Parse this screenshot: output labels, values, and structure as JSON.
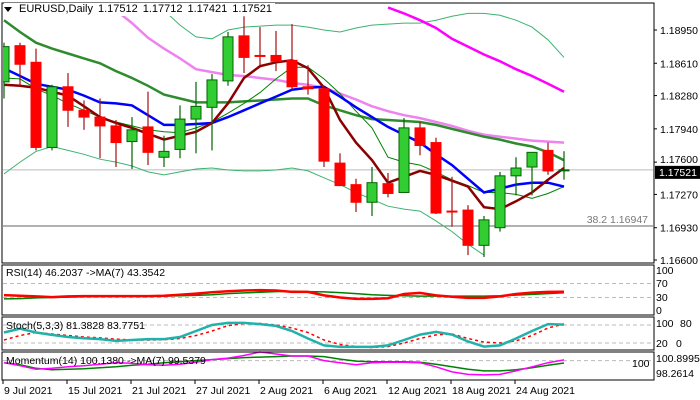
{
  "header": {
    "symbol_label": "EURUSD,Daily",
    "open": "1.17512",
    "high": "1.17712",
    "low": "1.17421",
    "close": "1.17521"
  },
  "price_axis": {
    "ticks": [
      "1.18950",
      "1.18610",
      "1.18280",
      "1.17940",
      "1.17600",
      "1.17270",
      "1.16930",
      "1.16600"
    ],
    "current_price_label": "1.17521"
  },
  "fib_label": "38.2 1.16947",
  "date_axis": {
    "labels": [
      "9 Jul 2021",
      "15 Jul 2021",
      "21 Jul 2021",
      "27 Jul 2021",
      "2 Aug 2021",
      "6 Aug 2021",
      "12 Aug 2021",
      "18 Aug 2021",
      "24 Aug 2021"
    ]
  },
  "rsi": {
    "label": "RSI(14) 46.2037  ->MA(7) 43.3542",
    "levels": [
      "100",
      "70",
      "30",
      "0"
    ]
  },
  "stoch": {
    "label": "Stoch(5,3,3) 81.3828 83.7751",
    "levels": [
      "100",
      "80",
      "20",
      "0"
    ]
  },
  "momentum": {
    "label": "Momentum(14) 100.1380  ->MA(7) 99.5379",
    "levels": [
      "100",
      "100.8995",
      "98.2614"
    ]
  },
  "colors": {
    "bull": "#32CD32",
    "bull_border": "#006400",
    "bear": "#FF0000",
    "bear_wick": "#A01010",
    "ma_blue": "#0000FF",
    "ma_darkred": "#8B0000",
    "ma_green": "#2E8B2E",
    "ma_violet": "#EE82EE",
    "ma_magenta": "#FF00FF",
    "bands": "#3CB371",
    "ma_thin": "#008000",
    "teal": "#20B2AA"
  },
  "chart_data": [
    {
      "type": "candlestick",
      "title": "EURUSD,Daily",
      "ylim": [
        1.166,
        1.1918
      ],
      "fib_level": 1.16947,
      "current_price": 1.17521,
      "candles": [
        [
          1.1842,
          1.1882,
          1.1825,
          1.1878
        ],
        [
          1.1879,
          1.1882,
          1.1837,
          1.186
        ],
        [
          1.1862,
          1.1876,
          1.1772,
          1.1775
        ],
        [
          1.1775,
          1.1839,
          1.1772,
          1.1837
        ],
        [
          1.1837,
          1.1851,
          1.1796,
          1.1813
        ],
        [
          1.1813,
          1.1823,
          1.1793,
          1.1806
        ],
        [
          1.1806,
          1.1825,
          1.1764,
          1.1797
        ],
        [
          1.1797,
          1.1803,
          1.1755,
          1.178
        ],
        [
          1.1781,
          1.1806,
          1.1753,
          1.1793
        ],
        [
          1.1796,
          1.1832,
          1.1757,
          1.177
        ],
        [
          1.1765,
          1.1787,
          1.1755,
          1.1771
        ],
        [
          1.1773,
          1.1818,
          1.1764,
          1.1804
        ],
        [
          1.1804,
          1.1842,
          1.1769,
          1.1817
        ],
        [
          1.1816,
          1.185,
          1.1772,
          1.1844
        ],
        [
          1.1843,
          1.1893,
          1.1838,
          1.1888
        ],
        [
          1.1889,
          1.1909,
          1.1851,
          1.1867
        ],
        [
          1.1869,
          1.1898,
          1.1859,
          1.1868
        ],
        [
          1.1869,
          1.1894,
          1.1853,
          1.1863
        ],
        [
          1.1864,
          1.1901,
          1.1834,
          1.1837
        ],
        [
          1.1837,
          1.1859,
          1.1829,
          1.1835
        ],
        [
          1.1835,
          1.1837,
          1.1755,
          1.1761
        ],
        [
          1.1759,
          1.1769,
          1.1736,
          1.1736
        ],
        [
          1.1737,
          1.1743,
          1.1709,
          1.1719
        ],
        [
          1.1719,
          1.1755,
          1.1705,
          1.1739
        ],
        [
          1.1738,
          1.1749,
          1.1724,
          1.1728
        ],
        [
          1.1729,
          1.1805,
          1.1729,
          1.1795
        ],
        [
          1.1795,
          1.1801,
          1.1767,
          1.1777
        ],
        [
          1.178,
          1.1785,
          1.1707,
          1.1708
        ],
        [
          1.171,
          1.1745,
          1.1694,
          1.1709
        ],
        [
          1.1711,
          1.1716,
          1.1665,
          1.1675
        ],
        [
          1.1675,
          1.1705,
          1.1663,
          1.1701
        ],
        [
          1.1693,
          1.175,
          1.1689,
          1.1746
        ],
        [
          1.1746,
          1.1765,
          1.1726,
          1.1754
        ],
        [
          1.1755,
          1.177,
          1.1726,
          1.177
        ],
        [
          1.1772,
          1.178,
          1.1747,
          1.1751
        ],
        [
          1.17512,
          1.17712,
          1.17421,
          1.17521
        ]
      ],
      "overlays": {
        "ma_blue": [
          1.1856,
          1.1848,
          1.184,
          1.1837,
          1.1834,
          1.1828,
          1.1821,
          1.182,
          1.1818,
          1.1808,
          1.1798,
          1.1798,
          1.1799,
          1.18,
          1.1806,
          1.1813,
          1.182,
          1.1827,
          1.1834,
          1.1836,
          1.1837,
          1.1827,
          1.1816,
          1.1806,
          1.1796,
          1.1788,
          1.178,
          1.1768,
          1.1757,
          1.1743,
          1.1729,
          1.1733,
          1.1737,
          1.1739,
          1.1739,
          1.1735
        ],
        "ma_darkred": [
          1.1839,
          1.1838,
          1.1836,
          1.1832,
          1.1828,
          1.1817,
          1.1806,
          1.18,
          1.1795,
          1.1789,
          1.1783,
          1.1787,
          1.1791,
          1.18,
          1.182,
          1.1846,
          1.1858,
          1.1862,
          1.1864,
          1.1856,
          1.1836,
          1.1803,
          1.178,
          1.1762,
          1.1739,
          1.1745,
          1.1751,
          1.1747,
          1.1741,
          1.1735,
          1.1714,
          1.1712,
          1.172,
          1.1729,
          1.1742,
          1.1754
        ],
        "ma_green": [
          1.1905,
          1.1893,
          1.1882,
          1.1876,
          1.1871,
          1.1866,
          1.1861,
          1.1853,
          1.1846,
          1.1838,
          1.1829,
          1.1825,
          1.1821,
          1.1821,
          1.1821,
          1.1822,
          1.1823,
          1.1824,
          1.1825,
          1.1825,
          1.1818,
          1.1813,
          1.1808,
          1.1804,
          1.1803,
          1.1802,
          1.1801,
          1.1798,
          1.1794,
          1.179,
          1.1786,
          1.1783,
          1.1779,
          1.1776,
          1.177,
          1.1762
        ],
        "ma_thin": [
          1.1846,
          1.1845,
          1.1835,
          1.1828,
          1.182,
          1.1813,
          1.1806,
          1.1801,
          1.1797,
          1.1793,
          1.1791,
          1.179,
          1.1795,
          1.1801,
          1.181,
          1.182,
          1.1831,
          1.1845,
          1.1857,
          1.1857,
          1.1845,
          1.183,
          1.1812,
          1.1795,
          1.1765,
          1.176,
          1.1757,
          1.175,
          1.1742,
          1.1736,
          1.1729,
          1.1729,
          1.1727,
          1.1723,
          1.1728,
          1.1735
        ],
        "ma_violet": [
          null,
          null,
          null,
          null,
          null,
          null,
          null,
          1.1915,
          1.1902,
          1.1887,
          1.1876,
          1.1866,
          1.1855,
          1.1852,
          1.1849,
          1.1848,
          1.1846,
          1.1844,
          1.1841,
          1.1839,
          1.1836,
          1.183,
          1.1824,
          1.1817,
          1.1812,
          1.1808,
          1.1805,
          1.1801,
          1.1797,
          1.1792,
          1.1788,
          1.1786,
          1.1784,
          1.1782,
          1.1781,
          1.178
        ],
        "ma_magenta": [
          null,
          null,
          null,
          null,
          null,
          null,
          null,
          null,
          null,
          null,
          null,
          null,
          null,
          null,
          null,
          null,
          null,
          null,
          null,
          null,
          null,
          null,
          null,
          null,
          1.1918,
          1.1912,
          1.1905,
          1.1897,
          1.1886,
          1.1878,
          1.187,
          1.1863,
          1.1855,
          1.1848,
          1.184,
          1.1832
        ],
        "band_upper": [
          null,
          null,
          null,
          null,
          null,
          null,
          null,
          null,
          null,
          null,
          1.1915,
          1.19,
          1.1888,
          1.1886,
          1.1895,
          1.1898,
          1.1899,
          1.19,
          1.19,
          1.1898,
          1.1895,
          1.1893,
          1.1897,
          1.19,
          1.1901,
          1.1902,
          1.1902,
          1.1905,
          1.1909,
          1.1912,
          1.1912,
          1.191,
          1.1905,
          1.1898,
          1.1885,
          1.1867
        ],
        "band_lower": [
          1.1748,
          1.176,
          1.1771,
          1.1776,
          1.1772,
          1.1768,
          1.1763,
          1.176,
          1.1756,
          1.175,
          1.1747,
          1.175,
          1.1753,
          1.1754,
          1.1752,
          1.1751,
          1.1751,
          1.1752,
          1.1754,
          1.1751,
          1.1744,
          1.1737,
          1.1729,
          1.1722,
          1.1715,
          1.1712,
          1.171,
          1.17,
          1.1689,
          1.1676,
          1.1665,
          null,
          null,
          null,
          null,
          null
        ]
      }
    },
    {
      "type": "line",
      "name": "RSI(14)",
      "ylim": [
        0,
        100
      ],
      "levels": [
        70,
        30
      ],
      "rsi": [
        37,
        35,
        33,
        31,
        33,
        34,
        34,
        34,
        34,
        34,
        35,
        38,
        41,
        45,
        48,
        50,
        51,
        50,
        46,
        46,
        36,
        30,
        26,
        26,
        28,
        40,
        43,
        36,
        32,
        29,
        29,
        33,
        40,
        44,
        46,
        46.2
      ],
      "ma": [
        26,
        27,
        29,
        30,
        31,
        32,
        33,
        33,
        34,
        34,
        34,
        35,
        36,
        38,
        41,
        43,
        45,
        47,
        48,
        47,
        46,
        44,
        41,
        38,
        36,
        35,
        34,
        34,
        34,
        34,
        34,
        35,
        37,
        39,
        41,
        43.35
      ]
    },
    {
      "type": "line",
      "name": "Stoch(5,3,3)",
      "ylim": [
        0,
        100
      ],
      "levels": [
        80,
        20
      ],
      "main": [
        55,
        68,
        55,
        47,
        40,
        36,
        33,
        27,
        30,
        33,
        33,
        40,
        60,
        80,
        87,
        87,
        83,
        77,
        60,
        35,
        12,
        7,
        7,
        7,
        12,
        30,
        48,
        57,
        48,
        25,
        8,
        12,
        35,
        60,
        83,
        81.38
      ],
      "signal": [
        30,
        45,
        55,
        50,
        45,
        40,
        37,
        33,
        30,
        30,
        31,
        35,
        45,
        60,
        78,
        85,
        85,
        80,
        70,
        55,
        30,
        15,
        8,
        5,
        8,
        20,
        35,
        47,
        50,
        35,
        23,
        20,
        27,
        45,
        70,
        83.78
      ]
    },
    {
      "type": "line",
      "name": "Momentum(14)",
      "ylim": [
        96.6,
        101.3
      ],
      "levels": [
        100
      ],
      "momentum": [
        99.6,
        99.0,
        98.3,
        98.5,
        98.8,
        99.0,
        99.3,
        99.6,
        99.5,
        99.2,
        99.1,
        99.3,
        99.7,
        100.2,
        100.5,
        101.0,
        101.7,
        101.3,
        100.9,
        100.9,
        100.0,
        99.6,
        99.2,
        99.6,
        99.7,
        99.7,
        99.6,
        98.8,
        97.8,
        97.3,
        97.2,
        97.3,
        98.0,
        98.8,
        99.6,
        100.14
      ],
      "ma": [
        99.6,
        99.2,
        98.5,
        98.2,
        98.3,
        98.4,
        98.6,
        98.8,
        99.1,
        99.3,
        99.6,
        99.8,
        100.0,
        100.2,
        100.4,
        100.6,
        100.7,
        100.8,
        100.9,
        100.9,
        100.8,
        100.3,
        99.9,
        99.8,
        99.8,
        99.8,
        99.7,
        99.3,
        98.8,
        98.3,
        98.0,
        98.0,
        98.2,
        98.6,
        99.1,
        99.54
      ]
    }
  ]
}
